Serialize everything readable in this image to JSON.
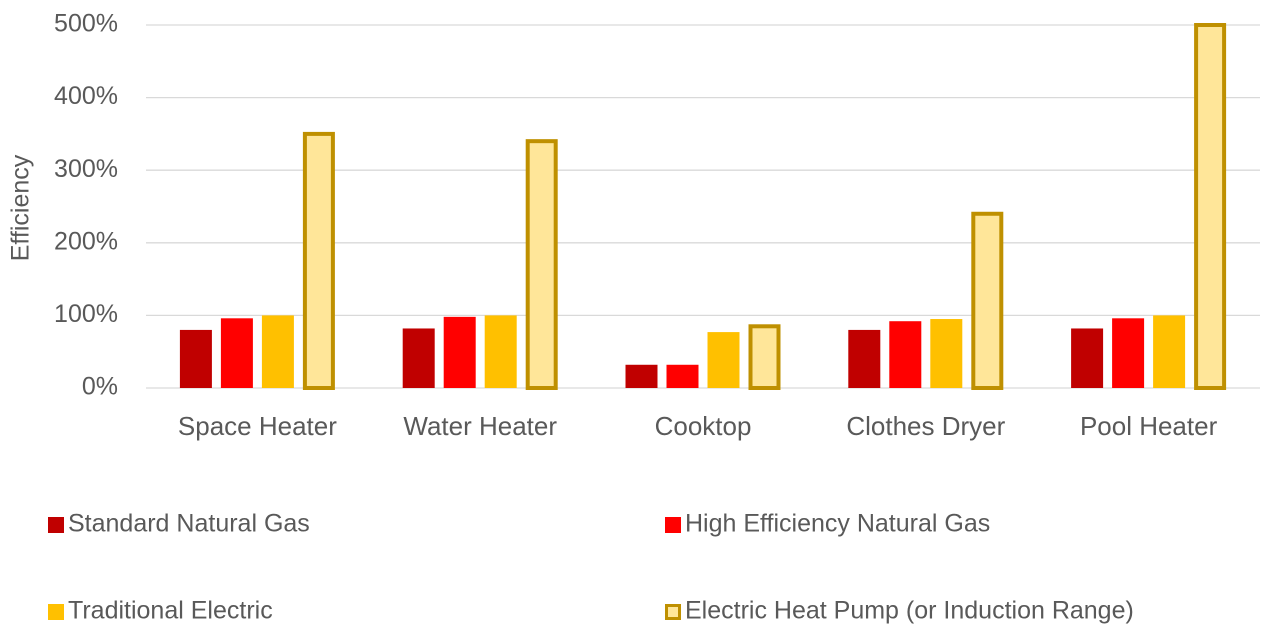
{
  "chart_data": {
    "type": "bar",
    "y_label": "Efficiency",
    "categories": [
      "Space Heater",
      "Water Heater",
      "Cooktop",
      "Clothes Dryer",
      "Pool Heater"
    ],
    "series": [
      {
        "name": "Standard Natural Gas",
        "color": "#c00000",
        "values": [
          80,
          82,
          32,
          80,
          82
        ]
      },
      {
        "name": "High Efficiency Natural Gas",
        "color": "#ff0000",
        "values": [
          96,
          98,
          32,
          92,
          96
        ]
      },
      {
        "name": "Traditional Electric",
        "color": "#ffc000",
        "values": [
          100,
          100,
          77,
          95,
          100
        ]
      },
      {
        "name": "Electric Heat Pump (or Induction Range)",
        "color": "#ffe699",
        "edgecolor": "#bf9000",
        "values": [
          350,
          340,
          85,
          240,
          500
        ]
      }
    ],
    "ylim": [
      0,
      500
    ],
    "yticks": [
      {
        "value": 0,
        "label": "0%"
      },
      {
        "value": 100,
        "label": "100%"
      },
      {
        "value": 200,
        "label": "200%"
      },
      {
        "value": 300,
        "label": "300%"
      },
      {
        "value": 400,
        "label": "400%"
      },
      {
        "value": 500,
        "label": "500%"
      }
    ],
    "grid": true,
    "legend": "bottom"
  }
}
